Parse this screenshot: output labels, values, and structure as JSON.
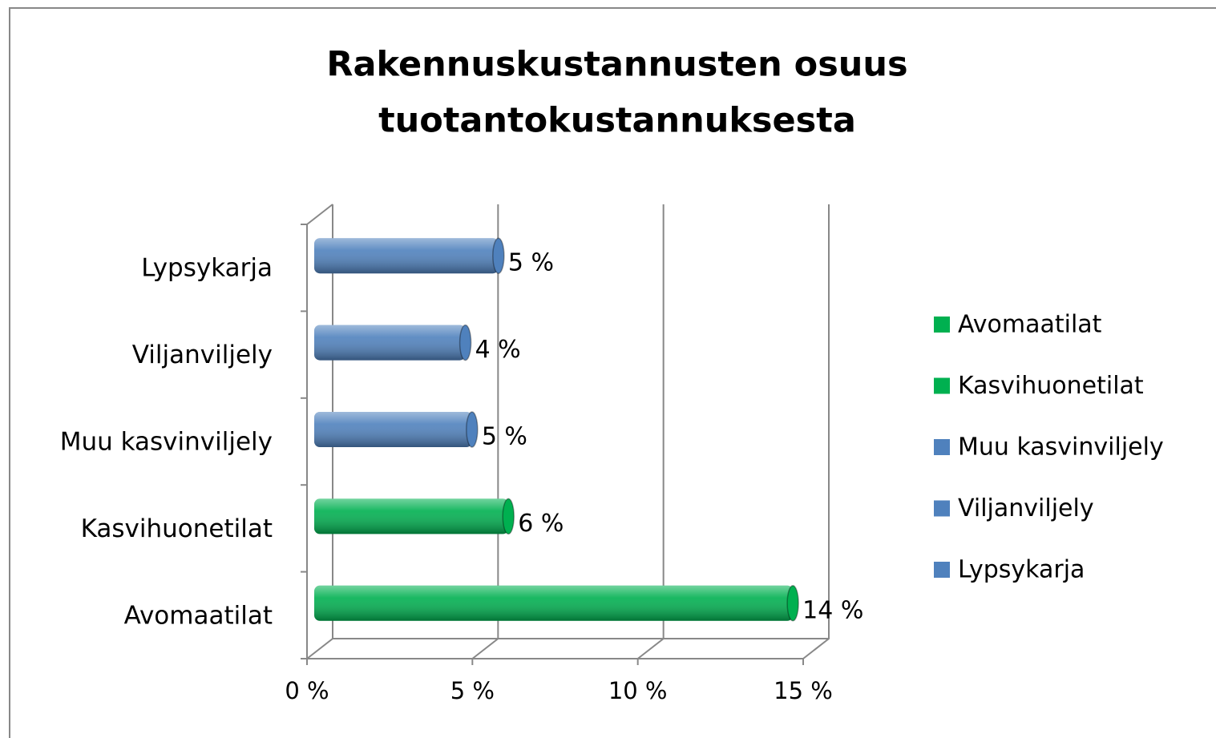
{
  "chart_data": {
    "type": "bar",
    "orientation": "horizontal",
    "title": [
      "Rakennuskustannusten osuus",
      "tuotantokustannuksesta"
    ],
    "categories": [
      "Avomaatilat",
      "Kasvihuonetilat",
      "Muu kasvinviljely",
      "Viljanviljely",
      "Lypsykarja"
    ],
    "values": [
      14.3,
      5.7,
      4.6,
      4.4,
      5.4
    ],
    "value_labels": [
      "14 %",
      "6 %",
      "5 %",
      "4 %",
      "5 %"
    ],
    "colors": [
      "#00b050",
      "#00b050",
      "#4f81bd",
      "#4f81bd",
      "#4f81bd"
    ],
    "xlim": [
      0,
      15
    ],
    "xticks": [
      {
        "value": 0,
        "label": "0 %"
      },
      {
        "value": 5,
        "label": "5 %"
      },
      {
        "value": 10,
        "label": "10 %"
      },
      {
        "value": 15,
        "label": "15 %"
      }
    ],
    "grid": true,
    "legend": "right"
  }
}
